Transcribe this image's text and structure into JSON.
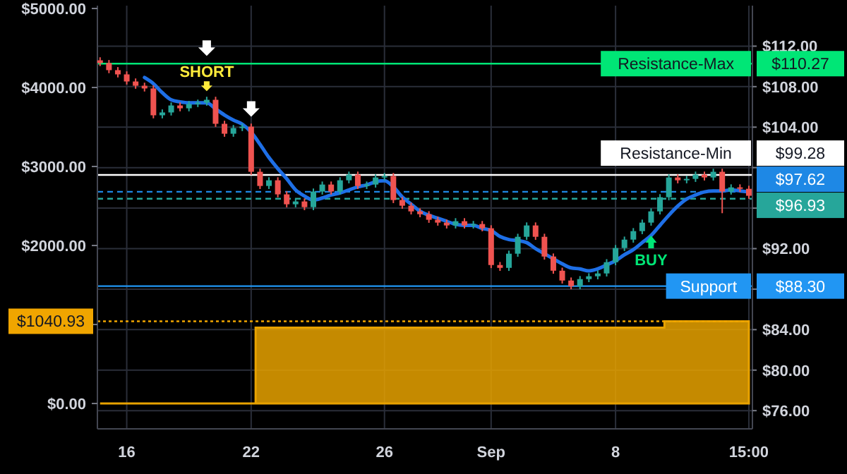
{
  "chart_data": {
    "type": "candlestick",
    "grid": true,
    "categories": [
      null,
      null,
      null,
      "16",
      null,
      null,
      null,
      null,
      null,
      null,
      null,
      null,
      null,
      null,
      null,
      null,
      null,
      "22",
      null,
      null,
      null,
      null,
      null,
      null,
      null,
      null,
      null,
      null,
      null,
      null,
      null,
      null,
      "26",
      null,
      null,
      null,
      null,
      null,
      null,
      null,
      null,
      null,
      null,
      null,
      "Sep",
      null,
      null,
      null,
      null,
      null,
      null,
      null,
      null,
      null,
      null,
      null,
      null,
      null,
      "8",
      null,
      null,
      null,
      null,
      null,
      null,
      null,
      null,
      null,
      null,
      null,
      null,
      null,
      null,
      "15:00"
    ],
    "ohlc": [
      [
        110.6,
        110.9,
        110.03,
        110.33
      ],
      [
        110.33,
        110.63,
        109.33,
        109.63
      ],
      [
        109.63,
        109.93,
        108.91,
        109.21
      ],
      [
        109.21,
        109.51,
        108.21,
        108.51
      ],
      [
        108.51,
        108.81,
        107.79,
        108.09
      ],
      [
        108.09,
        108.39,
        107.52,
        107.82
      ],
      [
        107.82,
        108.12,
        104.87,
        105.17
      ],
      [
        105.17,
        105.75,
        104.87,
        105.45
      ],
      [
        105.45,
        106.44,
        105.15,
        106.14
      ],
      [
        106.14,
        106.44,
        105.56,
        105.86
      ],
      [
        105.86,
        106.58,
        105.56,
        106.28
      ],
      [
        106.28,
        106.72,
        105.98,
        106.42
      ],
      [
        106.42,
        107.0,
        106.12,
        106.7
      ],
      [
        106.7,
        107.0,
        104.03,
        104.33
      ],
      [
        104.33,
        104.63,
        103.05,
        103.35
      ],
      [
        103.35,
        104.21,
        103.05,
        103.91
      ],
      [
        103.91,
        104.35,
        103.61,
        104.05
      ],
      [
        104.05,
        104.35,
        99.29,
        99.59
      ],
      [
        99.59,
        99.89,
        97.89,
        98.19
      ],
      [
        98.19,
        99.05,
        97.89,
        98.75
      ],
      [
        98.75,
        99.05,
        97.06,
        97.36
      ],
      [
        97.36,
        97.66,
        96.08,
        96.38
      ],
      [
        96.38,
        96.96,
        96.08,
        96.66
      ],
      [
        96.66,
        96.96,
        95.8,
        96.1
      ],
      [
        96.1,
        97.94,
        95.8,
        97.64
      ],
      [
        97.64,
        98.63,
        97.34,
        98.33
      ],
      [
        98.33,
        98.63,
        97.34,
        97.64
      ],
      [
        97.64,
        99.05,
        97.34,
        98.75
      ],
      [
        98.75,
        99.61,
        98.45,
        99.31
      ],
      [
        99.31,
        99.61,
        97.89,
        98.19
      ],
      [
        98.19,
        98.63,
        97.89,
        98.33
      ],
      [
        98.33,
        99.33,
        98.03,
        99.03
      ],
      [
        99.03,
        99.47,
        98.73,
        99.17
      ],
      [
        99.17,
        99.47,
        96.5,
        96.8
      ],
      [
        96.8,
        97.1,
        95.94,
        96.24
      ],
      [
        96.24,
        96.54,
        95.38,
        95.68
      ],
      [
        95.68,
        95.98,
        95.1,
        95.4
      ],
      [
        95.4,
        95.7,
        94.55,
        94.85
      ],
      [
        94.85,
        95.15,
        94.27,
        94.57
      ],
      [
        94.57,
        94.87,
        93.99,
        94.29
      ],
      [
        94.29,
        95.01,
        93.99,
        94.71
      ],
      [
        94.71,
        95.01,
        93.99,
        94.29
      ],
      [
        94.29,
        94.73,
        93.99,
        94.43
      ],
      [
        94.43,
        94.73,
        93.71,
        94.01
      ],
      [
        94.01,
        94.31,
        90.08,
        90.38
      ],
      [
        90.38,
        90.68,
        89.8,
        90.1
      ],
      [
        90.1,
        91.8,
        89.8,
        91.5
      ],
      [
        91.5,
        93.47,
        91.2,
        93.17
      ],
      [
        93.17,
        94.59,
        92.87,
        94.29
      ],
      [
        94.29,
        94.59,
        92.87,
        93.17
      ],
      [
        93.17,
        93.47,
        90.92,
        91.22
      ],
      [
        91.22,
        91.52,
        89.52,
        89.82
      ],
      [
        89.82,
        90.12,
        88.55,
        88.85
      ],
      [
        88.85,
        89.15,
        87.99,
        88.29
      ],
      [
        88.29,
        89.29,
        87.99,
        88.99
      ],
      [
        88.99,
        89.57,
        88.69,
        89.27
      ],
      [
        89.27,
        89.85,
        88.97,
        89.55
      ],
      [
        89.55,
        90.96,
        89.25,
        90.66
      ],
      [
        90.66,
        92.36,
        90.36,
        92.06
      ],
      [
        92.06,
        93.19,
        91.76,
        92.89
      ],
      [
        92.89,
        94.03,
        92.59,
        93.73
      ],
      [
        93.73,
        94.87,
        93.43,
        94.57
      ],
      [
        94.57,
        95.98,
        94.27,
        95.68
      ],
      [
        95.68,
        97.38,
        95.38,
        97.08
      ],
      [
        97.08,
        99.33,
        96.78,
        99.03
      ],
      [
        99.03,
        99.33,
        98.45,
        98.75
      ],
      [
        98.75,
        99.19,
        98.45,
        98.89
      ],
      [
        98.89,
        99.61,
        98.59,
        99.31
      ],
      [
        99.31,
        99.61,
        98.73,
        99.03
      ],
      [
        99.03,
        99.89,
        98.73,
        99.59
      ],
      [
        99.59,
        99.89,
        95.5,
        97.64
      ],
      [
        97.64,
        98.35,
        97.34,
        98.05
      ],
      [
        98.05,
        98.35,
        97.61,
        97.91
      ],
      [
        97.91,
        98.21,
        96.92,
        97.22
      ]
    ],
    "colors": [
      "#ef5350",
      "#ef5350",
      "#ef5350",
      "#ef5350",
      "#ef5350",
      "#ef5350",
      "#ef5350",
      "#26a69a",
      "#26a69a",
      "#ef5350",
      "#26a69a",
      "#26a69a",
      "#26a69a",
      "#ef5350",
      "#ef5350",
      "#26a69a",
      "#26a69a",
      "#ef5350",
      "#ef5350",
      "#26a69a",
      "#ef5350",
      "#ef5350",
      "#26a69a",
      "#ef5350",
      "#26a69a",
      "#26a69a",
      "#ef5350",
      "#26a69a",
      "#26a69a",
      "#ef5350",
      "#26a69a",
      "#26a69a",
      "#26a69a",
      "#ef5350",
      "#ef5350",
      "#ef5350",
      "#ef5350",
      "#ef5350",
      "#ef5350",
      "#ef5350",
      "#26a69a",
      "#ef5350",
      "#26a69a",
      "#ef5350",
      "#ef5350",
      "#ef5350",
      "#26a69a",
      "#26a69a",
      "#26a69a",
      "#ef5350",
      "#ef5350",
      "#ef5350",
      "#ef5350",
      "#ef5350",
      "#26a69a",
      "#26a69a",
      "#26a69a",
      "#26a69a",
      "#26a69a",
      "#26a69a",
      "#26a69a",
      "#26a69a",
      "#26a69a",
      "#26a69a",
      "#26a69a",
      "#ef5350",
      "#26a69a",
      "#26a69a",
      "#ef5350",
      "#26a69a",
      "#ef5350",
      "#26a69a",
      "#ef5350",
      "#ef5350"
    ],
    "series": [
      {
        "type": "line",
        "color": "#1e6fe6",
        "values": [
          null,
          null,
          null,
          null,
          null,
          108.9,
          108.3,
          107.4,
          106.7,
          106.5,
          106.4,
          106.4,
          106.4,
          105.8,
          105.2,
          104.7,
          104.3,
          103.5,
          102.3,
          101.0,
          99.9,
          98.9,
          97.8,
          97.2,
          96.8,
          97.0,
          97.3,
          97.5,
          97.8,
          98.1,
          98.3,
          98.6,
          98.7,
          98.1,
          97.1,
          96.4,
          95.7,
          95.3,
          95.0,
          94.7,
          94.4,
          94.3,
          94.3,
          94.0,
          93.8,
          93.2,
          92.9,
          92.8,
          92.6,
          92.0,
          91.5,
          91.0,
          90.5,
          90.1,
          90.0,
          89.8,
          90.0,
          90.4,
          90.8,
          91.4,
          91.9,
          92.6,
          93.3,
          94.3,
          95.3,
          96.2,
          96.9,
          97.3,
          97.6,
          97.7,
          97.7,
          97.8,
          97.7,
          97.6
        ]
      },
      {
        "type": "area",
        "axis": "y2",
        "color": "#e8a200",
        "values": [
          0,
          0,
          0,
          0,
          0,
          0,
          0,
          0,
          0,
          0,
          0,
          0,
          0,
          0,
          0,
          0,
          0,
          0,
          960,
          960,
          960,
          960,
          960,
          960,
          960,
          960,
          960,
          960,
          960,
          960,
          960,
          960,
          960,
          960,
          960,
          960,
          960,
          960,
          960,
          960,
          960,
          960,
          960,
          960,
          960,
          960,
          960,
          960,
          960,
          960,
          960,
          960,
          960,
          960,
          960,
          960,
          960,
          960,
          960,
          960,
          960,
          960,
          960,
          960,
          1040.93,
          1040.93,
          1040.93,
          1040.93,
          1040.93,
          1040.93,
          1040.93,
          1040.93,
          1040.93,
          1040.93
        ]
      }
    ],
    "ylim": [
      74.2,
      116.0
    ],
    "yticks": [
      {
        "value": 76,
        "label": "$76.00"
      },
      {
        "value": 80,
        "label": "$80.00"
      },
      {
        "value": 84,
        "label": "$84.00"
      },
      {
        "value": 88,
        "label": null
      },
      {
        "value": 92,
        "label": "$92.00"
      },
      {
        "value": 96,
        "label": null
      },
      {
        "value": 100,
        "label": null
      },
      {
        "value": 104,
        "label": "$104.00"
      },
      {
        "value": 108,
        "label": "$108.00"
      },
      {
        "value": 112,
        "label": "$112.00"
      }
    ],
    "y2lim": [
      -321,
      5036
    ],
    "y2ticks": [
      {
        "value": 0,
        "label": "$0.00"
      },
      {
        "value": 1000,
        "label": null
      },
      {
        "value": 2000,
        "label": "$2000.00"
      },
      {
        "value": 3000,
        "label": "$3000.00"
      },
      {
        "value": 4000,
        "label": "$4000.00"
      },
      {
        "value": 5000,
        "label": "$5000.00"
      }
    ],
    "ref_lines": [
      {
        "axis": "y",
        "value": 110.27,
        "label": "$110.27",
        "color": "#00e676",
        "line_style": "solid"
      },
      {
        "axis": "y",
        "value": 99.28,
        "label": "$99.28",
        "color": "#ffffff",
        "line_style": "solid"
      },
      {
        "axis": "y",
        "value": 97.62,
        "label": "$97.62",
        "color": "#1e88e5",
        "line_style": "dashed"
      },
      {
        "axis": "y",
        "value": 96.93,
        "label": "$96.93",
        "color": "#26a69a",
        "line_style": "dashed"
      },
      {
        "axis": "y",
        "value": 88.3,
        "label": "$88.30",
        "color": "#2196f3",
        "line_style": "solid"
      },
      {
        "axis": "y2",
        "value": 1040.93,
        "label": "$1040.93",
        "color": "#f0a500",
        "line_style": "dotted"
      }
    ],
    "annotations": [
      {
        "text": "Resistance-Max",
        "y": 110.27
      },
      {
        "text": "Resistance-Min",
        "y": 99.28
      },
      {
        "text": "Support",
        "y": 88.3
      },
      "SHORT",
      "BUY"
    ]
  }
}
